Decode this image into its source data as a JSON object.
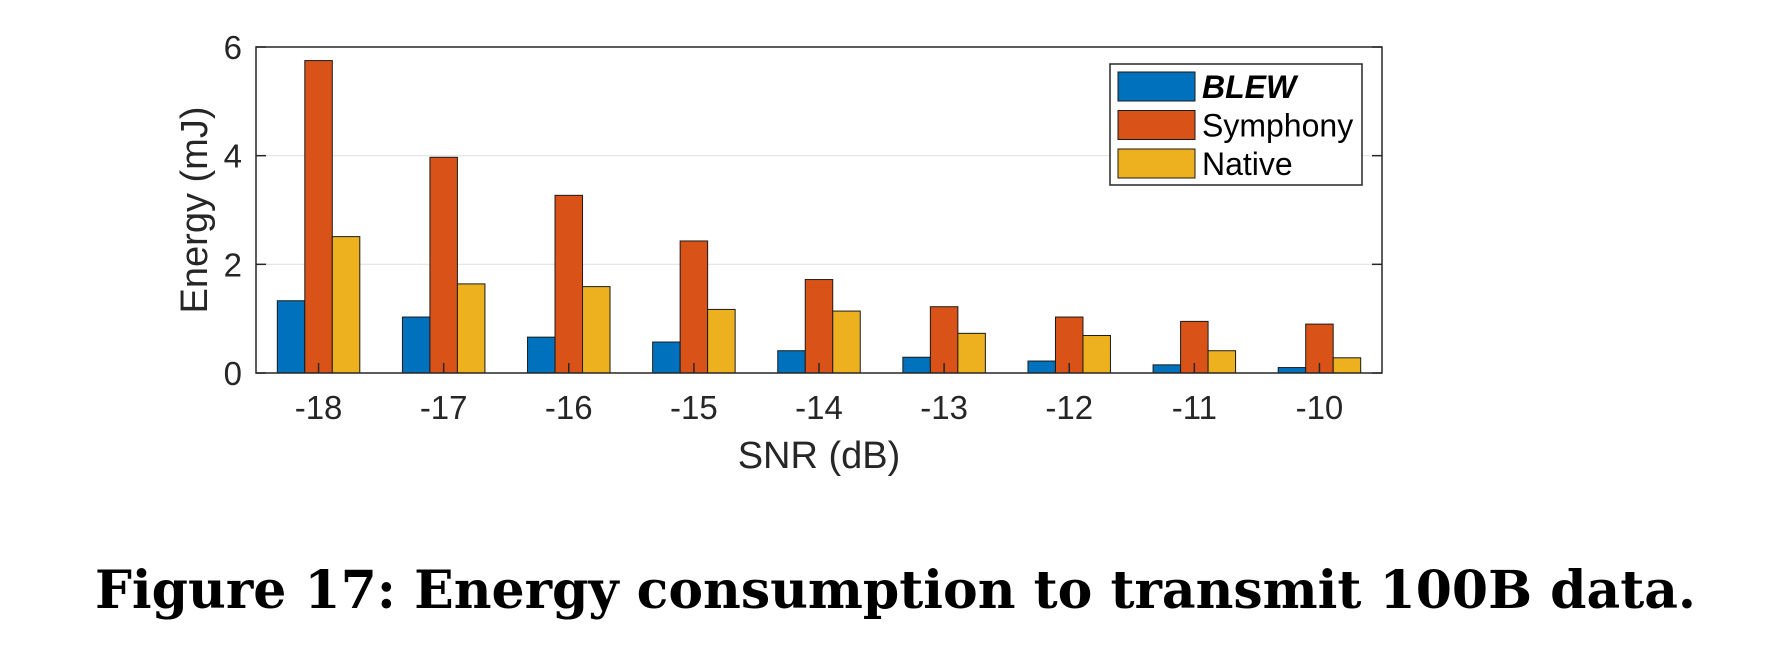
{
  "caption": "Figure 17: Energy consumption to transmit 100B data.",
  "chart_data": {
    "type": "bar",
    "xlabel": "SNR (dB)",
    "ylabel": "Energy (mJ)",
    "ylim": [
      0,
      6
    ],
    "yticks": [
      0,
      2,
      4,
      6
    ],
    "grid": "horizontal",
    "legend_position": "top-right",
    "categories": [
      "-18",
      "-17",
      "-16",
      "-15",
      "-14",
      "-13",
      "-12",
      "-11",
      "-10"
    ],
    "series": [
      {
        "name": "BLEW",
        "color": "#0072BD",
        "values": [
          1.33,
          1.03,
          0.66,
          0.57,
          0.41,
          0.29,
          0.22,
          0.15,
          0.1
        ]
      },
      {
        "name": "Symphony",
        "color": "#D95319",
        "values": [
          5.75,
          3.97,
          3.27,
          2.43,
          1.72,
          1.22,
          1.03,
          0.95,
          0.9
        ]
      },
      {
        "name": "Native",
        "color": "#EDB120",
        "values": [
          2.51,
          1.64,
          1.59,
          1.17,
          1.14,
          0.73,
          0.69,
          0.41,
          0.28
        ]
      }
    ]
  }
}
